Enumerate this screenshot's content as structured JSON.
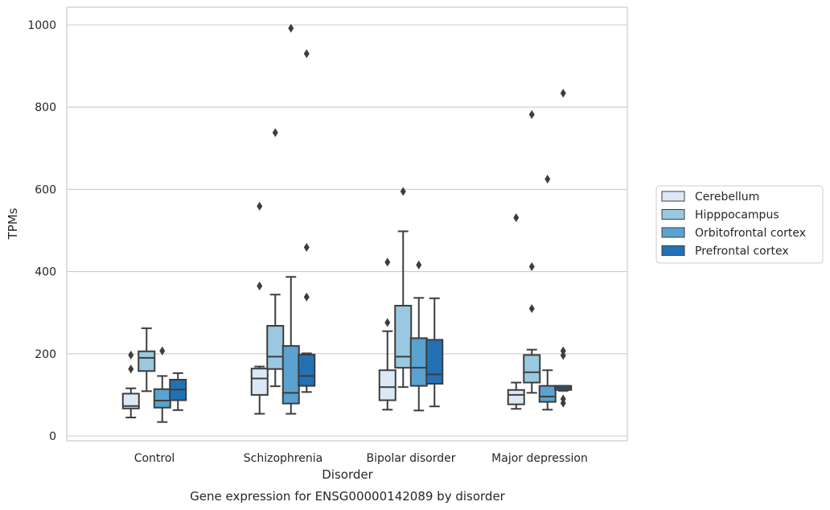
{
  "chart_data": {
    "type": "box",
    "title": "Gene expression for ENSG00000142089 by disorder",
    "xlabel": "Disorder",
    "ylabel": "TPMs",
    "ylim": [
      -15,
      1045
    ],
    "yticks": [
      0,
      200,
      400,
      600,
      800,
      1000
    ],
    "grid": "horizontal",
    "legend": {
      "placement": "right"
    },
    "categories": [
      "Control",
      "Schizophrenia",
      "Bipolar disorder",
      "Major depression"
    ],
    "series": [
      {
        "name": "Cerebellum",
        "color": "#dbe9f6",
        "boxes": [
          {
            "whislo": 45,
            "q1": 67,
            "med": 73,
            "q3": 103,
            "whishi": 116,
            "fliers": [
              163,
              197
            ]
          },
          {
            "whislo": 54,
            "q1": 100,
            "med": 140,
            "q3": 164,
            "whishi": 169,
            "fliers": [
              365,
              559
            ]
          },
          {
            "whislo": 64,
            "q1": 87,
            "med": 119,
            "q3": 160,
            "whishi": 255,
            "fliers": [
              276,
              423
            ]
          },
          {
            "whislo": 66,
            "q1": 77,
            "med": 100,
            "q3": 112,
            "whishi": 130,
            "fliers": [
              531
            ]
          }
        ]
      },
      {
        "name": "Hipppocampus",
        "color": "#9ac8e0",
        "boxes": [
          {
            "whislo": 109,
            "q1": 158,
            "med": 190,
            "q3": 206,
            "whishi": 262,
            "fliers": []
          },
          {
            "whislo": 121,
            "q1": 163,
            "med": 193,
            "q3": 268,
            "whishi": 344,
            "fliers": [
              738
            ]
          },
          {
            "whislo": 119,
            "q1": 166,
            "med": 193,
            "q3": 317,
            "whishi": 498,
            "fliers": [
              595
            ]
          },
          {
            "whislo": 105,
            "q1": 130,
            "med": 155,
            "q3": 197,
            "whishi": 210,
            "fliers": [
              310,
              412,
              782
            ]
          }
        ]
      },
      {
        "name": "Orbitofrontal cortex",
        "color": "#5aa2cf",
        "boxes": [
          {
            "whislo": 34,
            "q1": 69,
            "med": 86,
            "q3": 114,
            "whishi": 146,
            "fliers": [
              207
            ]
          },
          {
            "whislo": 54,
            "q1": 79,
            "med": 105,
            "q3": 219,
            "whishi": 387,
            "fliers": [
              992
            ]
          },
          {
            "whislo": 62,
            "q1": 122,
            "med": 166,
            "q3": 238,
            "whishi": 336,
            "fliers": [
              416
            ]
          },
          {
            "whislo": 64,
            "q1": 83,
            "med": 96,
            "q3": 122,
            "whishi": 160,
            "fliers": [
              625
            ]
          }
        ]
      },
      {
        "name": "Prefrontal cortex",
        "color": "#2271b5",
        "boxes": [
          {
            "whislo": 63,
            "q1": 87,
            "med": 113,
            "q3": 137,
            "whishi": 153,
            "fliers": []
          },
          {
            "whislo": 107,
            "q1": 122,
            "med": 146,
            "q3": 198,
            "whishi": 201,
            "fliers": [
              338,
              459,
              930
            ]
          },
          {
            "whislo": 72,
            "q1": 127,
            "med": 150,
            "q3": 234,
            "whishi": 335,
            "fliers": []
          },
          {
            "whislo": 110,
            "q1": 112,
            "med": 117,
            "q3": 122,
            "whishi": 122,
            "fliers": [
              80,
              90,
              196,
              207,
              834
            ]
          }
        ]
      }
    ]
  }
}
